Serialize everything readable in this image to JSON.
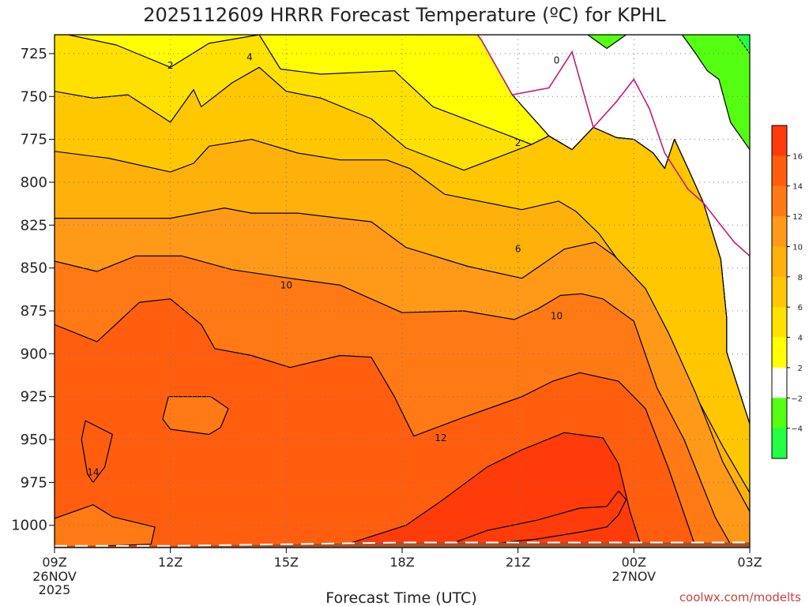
{
  "chart_data": {
    "type": "contour",
    "title": "2025112609 HRRR Forecast Temperature (ºC) for KPHL",
    "xlabel": "Forecast Time (UTC)",
    "ylabel": "",
    "credit": "coolwx.com/modelts",
    "x_ticks": [
      {
        "hours": 0,
        "label": "09Z",
        "sub1": "26NOV",
        "sub2": "2025"
      },
      {
        "hours": 3,
        "label": "12Z",
        "sub1": "",
        "sub2": ""
      },
      {
        "hours": 6,
        "label": "15Z",
        "sub1": "",
        "sub2": ""
      },
      {
        "hours": 9,
        "label": "18Z",
        "sub1": "",
        "sub2": ""
      },
      {
        "hours": 12,
        "label": "21Z",
        "sub1": "",
        "sub2": ""
      },
      {
        "hours": 15,
        "label": "00Z",
        "sub1": "27NOV",
        "sub2": ""
      },
      {
        "hours": 18,
        "label": "03Z",
        "sub1": "",
        "sub2": ""
      }
    ],
    "y_ticks": [
      725,
      750,
      775,
      800,
      825,
      850,
      875,
      900,
      925,
      950,
      975,
      1000
    ],
    "ylim": [
      1013,
      714
    ],
    "xlim": [
      0,
      18
    ],
    "colorbar": {
      "levels": [
        "16",
        "14",
        "12",
        "10",
        "8",
        "6",
        "4",
        "2",
        "−2",
        "−4"
      ],
      "colors": [
        "#ff3b0a",
        "#ff5e0f",
        "#ff7a14",
        "#ff9a18",
        "#ffb10b",
        "#ffc700",
        "#ffe100",
        "#ffff00",
        "#ffffff",
        "#55ff11",
        "#22ff44"
      ]
    },
    "bands": [
      {
        "level": "-4",
        "color": "#22ff44",
        "points": [
          [
            17.65,
            714
          ],
          [
            18,
            714
          ],
          [
            18,
            725
          ],
          [
            17.65,
            714
          ]
        ]
      },
      {
        "level": "-2",
        "color": "#55ff11",
        "points": [
          [
            13.8,
            714
          ],
          [
            17.65,
            714
          ],
          [
            18,
            725
          ],
          [
            18,
            781
          ],
          [
            17.5,
            765
          ],
          [
            17.2,
            740
          ],
          [
            16.9,
            735
          ],
          [
            16.6,
            725
          ],
          [
            16.25,
            714
          ],
          [
            14.8,
            714
          ],
          [
            14.3,
            722
          ],
          [
            13.8,
            714
          ]
        ]
      },
      {
        "level": "0",
        "color": "#ffffff",
        "points": [
          [
            10.95,
            714
          ],
          [
            13.8,
            714
          ],
          [
            14.3,
            722
          ],
          [
            14.8,
            714
          ],
          [
            16.25,
            714
          ],
          [
            16.6,
            725
          ],
          [
            16.9,
            735
          ],
          [
            17.2,
            740
          ],
          [
            17.5,
            765
          ],
          [
            18,
            781
          ],
          [
            18,
            941
          ],
          [
            17.4,
            899
          ],
          [
            17.4,
            879
          ],
          [
            17.25,
            845
          ],
          [
            16.8,
            812
          ],
          [
            16.4,
            792
          ],
          [
            16.05,
            775
          ],
          [
            15.8,
            792
          ],
          [
            15.5,
            783
          ],
          [
            15,
            775
          ],
          [
            14.55,
            774
          ],
          [
            13.95,
            768
          ],
          [
            13.4,
            781
          ],
          [
            12.8,
            773
          ],
          [
            11.85,
            749
          ],
          [
            11.05,
            717
          ],
          [
            10.95,
            714
          ]
        ]
      },
      {
        "level": "2",
        "color": "#ffff00",
        "points": [
          [
            0,
            714
          ],
          [
            10.95,
            714
          ],
          [
            11.05,
            717
          ],
          [
            11.85,
            749
          ],
          [
            12.8,
            773
          ],
          [
            13.4,
            781
          ],
          [
            13.95,
            768
          ],
          [
            14.55,
            774
          ],
          [
            15,
            775
          ],
          [
            15.5,
            783
          ],
          [
            15.8,
            792
          ],
          [
            16.05,
            775
          ],
          [
            16.4,
            792
          ],
          [
            16.8,
            812
          ],
          [
            17.25,
            845
          ],
          [
            17.4,
            879
          ],
          [
            17.4,
            899
          ],
          [
            18,
            941
          ],
          [
            18,
            1013
          ],
          [
            0,
            1013
          ]
        ]
      },
      {
        "level": "4",
        "color": "#ffe100",
        "points": [
          [
            0,
            714
          ],
          [
            0.35,
            714
          ],
          [
            1.6,
            720
          ],
          [
            3,
            733
          ],
          [
            4,
            719
          ],
          [
            5.3,
            714
          ],
          [
            5.85,
            734
          ],
          [
            6.9,
            737
          ],
          [
            8.8,
            735
          ],
          [
            9.8,
            756
          ],
          [
            11.9,
            774
          ],
          [
            12.35,
            778
          ],
          [
            12.8,
            773
          ],
          [
            13.4,
            781
          ],
          [
            13.95,
            768
          ],
          [
            14.55,
            774
          ],
          [
            15,
            775
          ],
          [
            15.5,
            783
          ],
          [
            15.8,
            792
          ],
          [
            16.05,
            775
          ],
          [
            16.4,
            792
          ],
          [
            16.8,
            812
          ],
          [
            17.25,
            845
          ],
          [
            17.4,
            879
          ],
          [
            17.4,
            899
          ],
          [
            18,
            941
          ],
          [
            18,
            1013
          ],
          [
            0,
            1013
          ]
        ]
      },
      {
        "level": "6",
        "color": "#ffc700",
        "points": [
          [
            0,
            747
          ],
          [
            1,
            751
          ],
          [
            1.9,
            749
          ],
          [
            3,
            765
          ],
          [
            3.6,
            746
          ],
          [
            3.8,
            756
          ],
          [
            4.6,
            742
          ],
          [
            5.3,
            733
          ],
          [
            6,
            747
          ],
          [
            6.9,
            751
          ],
          [
            8.2,
            763
          ],
          [
            9.1,
            780
          ],
          [
            10.6,
            793
          ],
          [
            12.35,
            778
          ],
          [
            12.8,
            773
          ],
          [
            13.4,
            781
          ],
          [
            13.95,
            768
          ],
          [
            14.55,
            774
          ],
          [
            15,
            775
          ],
          [
            15.5,
            783
          ],
          [
            15.8,
            792
          ],
          [
            16.05,
            775
          ],
          [
            16.4,
            792
          ],
          [
            16.8,
            812
          ],
          [
            17.25,
            845
          ],
          [
            17.4,
            879
          ],
          [
            17.4,
            899
          ],
          [
            18,
            941
          ],
          [
            18,
            1013
          ],
          [
            0,
            1013
          ]
        ]
      },
      {
        "level": "8",
        "color": "#ffb10b",
        "points": [
          [
            0,
            782
          ],
          [
            1.4,
            786
          ],
          [
            3,
            794
          ],
          [
            3.6,
            789
          ],
          [
            4,
            779
          ],
          [
            5.1,
            775
          ],
          [
            6.3,
            783
          ],
          [
            7.4,
            787
          ],
          [
            8.6,
            787
          ],
          [
            9.2,
            792
          ],
          [
            10.1,
            807
          ],
          [
            12.1,
            816
          ],
          [
            13.05,
            811
          ],
          [
            13.5,
            817
          ],
          [
            14.1,
            830
          ],
          [
            14.9,
            855
          ],
          [
            15.7,
            886
          ],
          [
            16.4,
            916
          ],
          [
            17.3,
            954
          ],
          [
            18,
            981
          ],
          [
            18,
            1013
          ],
          [
            0,
            1013
          ]
        ]
      },
      {
        "level": "10",
        "color": "#ff9a18",
        "points": [
          [
            0,
            821
          ],
          [
            3,
            821
          ],
          [
            3.7,
            818
          ],
          [
            4.4,
            815
          ],
          [
            5.1,
            818
          ],
          [
            6.3,
            818
          ],
          [
            7.4,
            821
          ],
          [
            8.2,
            823
          ],
          [
            9.1,
            838
          ],
          [
            10.7,
            849
          ],
          [
            12.1,
            856
          ],
          [
            13.2,
            839
          ],
          [
            14,
            835
          ],
          [
            14.5,
            843
          ],
          [
            15.3,
            862
          ],
          [
            15.9,
            888
          ],
          [
            16.6,
            923
          ],
          [
            17.3,
            963
          ],
          [
            18,
            992
          ],
          [
            18,
            1013
          ],
          [
            0,
            1013
          ]
        ]
      },
      {
        "level": "12",
        "color": "#ff7a14",
        "points": [
          [
            0,
            846
          ],
          [
            1.1,
            852
          ],
          [
            2.1,
            843
          ],
          [
            3.3,
            843
          ],
          [
            4.6,
            851
          ],
          [
            6.1,
            856
          ],
          [
            7.4,
            860
          ],
          [
            8.2,
            868
          ],
          [
            9,
            876
          ],
          [
            10.6,
            875
          ],
          [
            11.9,
            880
          ],
          [
            12.5,
            874
          ],
          [
            13.1,
            866
          ],
          [
            13.65,
            865
          ],
          [
            14.2,
            868
          ],
          [
            15,
            881
          ],
          [
            15.6,
            920
          ],
          [
            16.3,
            950
          ],
          [
            17.1,
            995
          ],
          [
            17.55,
            1013
          ],
          [
            0,
            1013
          ]
        ]
      },
      {
        "level": "14",
        "color": "#ff5e0f",
        "points": [
          [
            0,
            883
          ],
          [
            1.1,
            893
          ],
          [
            2.2,
            870
          ],
          [
            3,
            868
          ],
          [
            3.8,
            883
          ],
          [
            4.15,
            897
          ],
          [
            5.1,
            901
          ],
          [
            6.1,
            908
          ],
          [
            7.4,
            901
          ],
          [
            8.2,
            902
          ],
          [
            8.8,
            925
          ],
          [
            9.3,
            948
          ],
          [
            10.6,
            937
          ],
          [
            12.1,
            925
          ],
          [
            12.9,
            916
          ],
          [
            13.6,
            911
          ],
          [
            14.6,
            916
          ],
          [
            15.3,
            932
          ],
          [
            15.9,
            967
          ],
          [
            16.6,
            1013
          ],
          [
            0,
            1013
          ]
        ]
      },
      {
        "level": "16",
        "color": "#ff3b0a",
        "points": [
          [
            7.3,
            1013
          ],
          [
            9.1,
            1000
          ],
          [
            10,
            986
          ],
          [
            11.2,
            966
          ],
          [
            12.1,
            956
          ],
          [
            13.2,
            946
          ],
          [
            14.2,
            949
          ],
          [
            14.6,
            964
          ],
          [
            14.9,
            992
          ],
          [
            15.2,
            1013
          ]
        ]
      },
      {
        "level": "12",
        "color": "#ff7a14",
        "points": [
          [
            0,
            996
          ],
          [
            1,
            988
          ],
          [
            1.5,
            995
          ],
          [
            2.6,
            1001
          ],
          [
            2.5,
            1011
          ],
          [
            0,
            1013
          ]
        ]
      },
      {
        "level": "14",
        "color": "#ff5e0f",
        "points": [
          [
            0.8,
            939
          ],
          [
            1.5,
            947
          ],
          [
            1.3,
            966
          ],
          [
            1,
            975
          ],
          [
            0.85,
            970
          ],
          [
            0.7,
            950
          ]
        ]
      },
      {
        "level": "14",
        "color": "#ff7a14",
        "points": [
          [
            2.95,
            925
          ],
          [
            4.05,
            925
          ],
          [
            4.5,
            932
          ],
          [
            4.3,
            943
          ],
          [
            4,
            947
          ],
          [
            3,
            944
          ],
          [
            2.8,
            938
          ]
        ]
      },
      {
        "level": "16",
        "color": "#ff3b0a",
        "points": [
          [
            10,
            1013
          ],
          [
            11.2,
            1003
          ],
          [
            12.5,
            997
          ],
          [
            13.6,
            990
          ],
          [
            14.3,
            989
          ],
          [
            14.6,
            980
          ],
          [
            14.8,
            985
          ],
          [
            14.6,
            994
          ],
          [
            14.3,
            1001
          ],
          [
            13.6,
            1004
          ],
          [
            12.5,
            1008
          ],
          [
            11.2,
            1011
          ]
        ]
      }
    ],
    "contour_labels": [
      {
        "x": 3.0,
        "y": 732,
        "text": "2"
      },
      {
        "x": 5.05,
        "y": 727,
        "text": "4"
      },
      {
        "x": 12.0,
        "y": 777,
        "text": "2"
      },
      {
        "x": 12.0,
        "y": 839,
        "text": "6"
      },
      {
        "x": 6.0,
        "y": 860,
        "text": "10"
      },
      {
        "x": 13.0,
        "y": 878,
        "text": "10"
      },
      {
        "x": 10.0,
        "y": 949,
        "text": "12"
      },
      {
        "x": 1.0,
        "y": 969,
        "text": "14"
      },
      {
        "x": 13.0,
        "y": 729,
        "text": "0"
      }
    ],
    "freezing_line": [
      [
        10.95,
        714
      ],
      [
        11.05,
        717
      ],
      [
        11.85,
        749
      ],
      [
        12.8,
        745
      ],
      [
        13.4,
        724
      ],
      [
        13.95,
        768
      ],
      [
        14.55,
        753
      ],
      [
        15,
        740
      ],
      [
        15.4,
        757
      ],
      [
        15.8,
        783
      ],
      [
        16.4,
        804
      ],
      [
        16.8,
        812
      ],
      [
        17.25,
        825
      ],
      [
        17.6,
        835
      ],
      [
        18,
        843
      ]
    ],
    "surface_line": [
      [
        0,
        1012
      ],
      [
        3,
        1012
      ],
      [
        6,
        1011
      ],
      [
        9,
        1010
      ],
      [
        12,
        1010
      ],
      [
        15,
        1010
      ],
      [
        17,
        1010
      ],
      [
        18,
        1010
      ]
    ]
  }
}
